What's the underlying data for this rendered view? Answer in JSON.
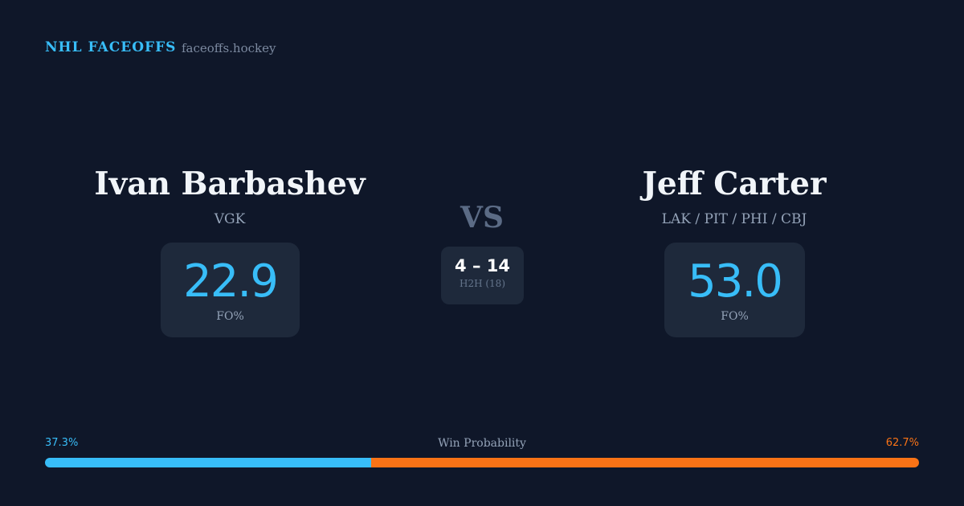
{
  "header": {
    "brand": "NHL FACEOFFS",
    "site": "faceoffs.hockey"
  },
  "left": {
    "name": "Ivan Barbashev",
    "team": "VGK",
    "fo_pct": "22.9",
    "fo_label": "FO%"
  },
  "right": {
    "name": "Jeff Carter",
    "team": "LAK / PIT / PHI / CBJ",
    "fo_pct": "53.0",
    "fo_label": "FO%"
  },
  "vs": "VS",
  "h2h": {
    "score": "4 – 14",
    "label": "H2H (18)"
  },
  "win_probability": {
    "label": "Win Probability",
    "left_label": "37.3%",
    "right_label": "62.7%",
    "left": 37.3,
    "right": 62.7
  },
  "colors": {
    "left": "#38bdf8",
    "right": "#f97316",
    "background": "#0f1729",
    "card": "#1e293b"
  }
}
